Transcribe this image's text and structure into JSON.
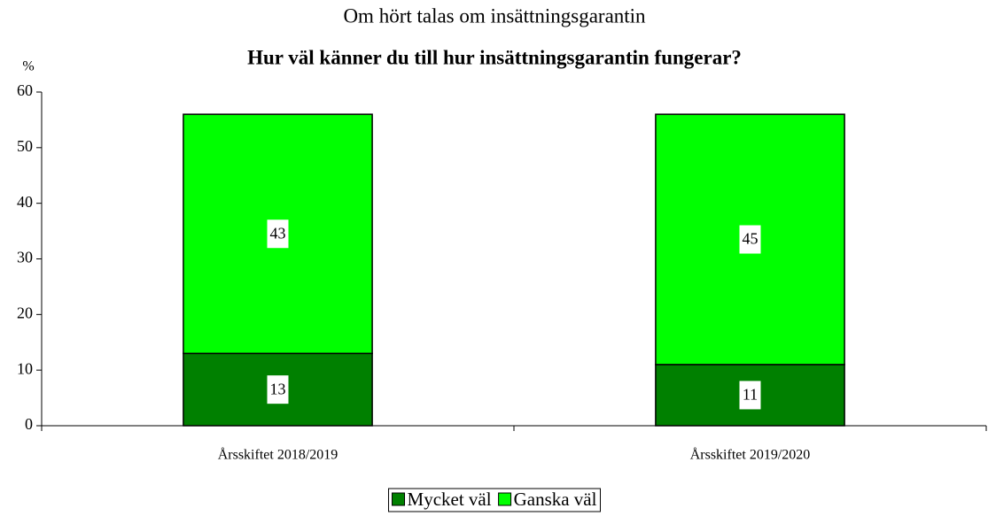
{
  "chart_data": {
    "type": "bar",
    "stacked": true,
    "subtitle": "Om hört talas om insättningsgarantin",
    "title": "Hur väl känner du till hur insättningsgarantin fungerar?",
    "y_label": "%",
    "categories": [
      "Årsskiftet 2018/2019",
      "Årsskiftet 2019/2020"
    ],
    "series": [
      {
        "name": "Mycket väl",
        "color": "#008000",
        "values": [
          13,
          11
        ]
      },
      {
        "name": "Ganska väl",
        "color": "#00ff00",
        "values": [
          43,
          45
        ]
      }
    ],
    "ylim": [
      0,
      60
    ],
    "yticks": [
      0,
      10,
      20,
      30,
      40,
      50,
      60
    ],
    "legend": "bottom"
  }
}
